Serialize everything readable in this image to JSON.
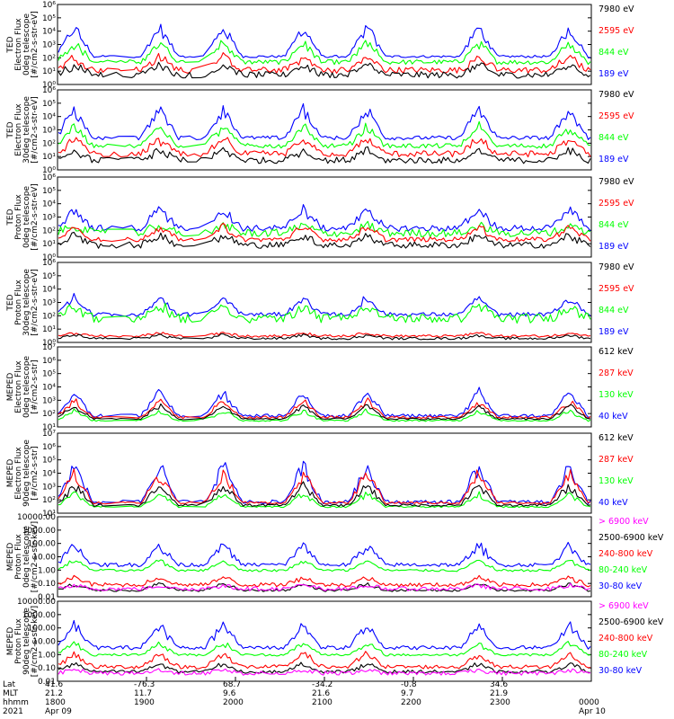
{
  "colors": {
    "blue": "#0000ff",
    "red": "#ff0000",
    "green": "#00ff00",
    "black": "#000000",
    "magenta": "#ff00ff",
    "axis": "#000000"
  },
  "chart_data": [
    {
      "type": "scatter",
      "ylabel": "TED\nElectron Flux\n0deg telescope\n[#/cm2-s-str-eV]",
      "ylim": [
        1,
        1000000
      ],
      "log_y": true,
      "yticks": [
        "10⁰",
        "10¹",
        "10²",
        "10³",
        "10⁴",
        "10⁵",
        "10⁶"
      ],
      "legend_placement": "right",
      "series": [
        {
          "name": "7980 eV",
          "color": "black"
        },
        {
          "name": "2595 eV",
          "color": "red"
        },
        {
          "name": "844 eV",
          "color": "green"
        },
        {
          "name": "189 eV",
          "color": "blue"
        }
      ]
    },
    {
      "type": "scatter",
      "ylabel": "TED\nElectron Flux\n30deg telescope\n[#/cm2-s-str-eV]",
      "ylim": [
        1,
        1000000
      ],
      "log_y": true,
      "yticks": [
        "10⁰",
        "10¹",
        "10²",
        "10³",
        "10⁴",
        "10⁵",
        "10⁶"
      ],
      "legend_placement": "right",
      "series": [
        {
          "name": "7980 eV",
          "color": "black"
        },
        {
          "name": "2595 eV",
          "color": "red"
        },
        {
          "name": "844 eV",
          "color": "green"
        },
        {
          "name": "189 eV",
          "color": "blue"
        }
      ]
    },
    {
      "type": "scatter",
      "ylabel": "TED\nProton Flux\n0deg telescope\n[#/cm2-s-str-eV]",
      "ylim": [
        1,
        1000000
      ],
      "log_y": true,
      "yticks": [
        "10⁰",
        "10¹",
        "10²",
        "10³",
        "10⁴",
        "10⁵",
        "10⁶"
      ],
      "legend_placement": "right",
      "series": [
        {
          "name": "7980 eV",
          "color": "black"
        },
        {
          "name": "2595 eV",
          "color": "red"
        },
        {
          "name": "844 eV",
          "color": "green"
        },
        {
          "name": "189 eV",
          "color": "blue"
        }
      ]
    },
    {
      "type": "scatter",
      "ylabel": "TED\nProton Flux\n30deg telescope\n[#/cm2-s-str-eV]",
      "ylim": [
        1,
        1000000
      ],
      "log_y": true,
      "yticks": [
        "10⁰",
        "10¹",
        "10²",
        "10³",
        "10⁴",
        "10⁵",
        "10⁶"
      ],
      "legend_placement": "right",
      "series": [
        {
          "name": "7980 eV",
          "color": "black"
        },
        {
          "name": "2595 eV",
          "color": "red"
        },
        {
          "name": "844 eV",
          "color": "green"
        },
        {
          "name": "189 eV",
          "color": "blue"
        }
      ]
    },
    {
      "type": "scatter",
      "ylabel": "MEPED\nElectron Flux\n0deg telescope\n[#/cm2-s-str]",
      "ylim": [
        10,
        10000000
      ],
      "log_y": true,
      "yticks": [
        "10¹",
        "10²",
        "10³",
        "10⁴",
        "10⁵",
        "10⁶",
        "10⁷"
      ],
      "legend_placement": "right",
      "series": [
        {
          "name": "612 keV",
          "color": "black"
        },
        {
          "name": "287 keV",
          "color": "red"
        },
        {
          "name": "130 keV",
          "color": "green"
        },
        {
          "name": "40 keV",
          "color": "blue"
        }
      ]
    },
    {
      "type": "scatter",
      "ylabel": "MEPED\nElectron Flux\n90deg telescope\n[#/cm2-s-str]",
      "ylim": [
        10,
        10000000
      ],
      "log_y": true,
      "yticks": [
        "10¹",
        "10²",
        "10³",
        "10⁴",
        "10⁵",
        "10⁶",
        "10⁷"
      ],
      "legend_placement": "right",
      "series": [
        {
          "name": "612 keV",
          "color": "black"
        },
        {
          "name": "287 keV",
          "color": "red"
        },
        {
          "name": "130 keV",
          "color": "green"
        },
        {
          "name": "40 keV",
          "color": "blue"
        }
      ]
    },
    {
      "type": "scatter",
      "ylabel": "MEPED\nProton Flux\n0deg telescope\n[#/cm2-s-str-keV]",
      "ylim": [
        0.01,
        10000
      ],
      "log_y": true,
      "yticks": [
        "0.01",
        "0.10",
        "1.00",
        "10.00",
        "100.00",
        "1000.00",
        "10000.00"
      ],
      "legend_placement": "right",
      "series": [
        {
          "name": "> 6900 keV",
          "color": "magenta"
        },
        {
          "name": "2500-6900 keV",
          "color": "black"
        },
        {
          "name": "240-800 keV",
          "color": "red"
        },
        {
          "name": "80-240 keV",
          "color": "green"
        },
        {
          "name": "30-80 keV",
          "color": "blue"
        }
      ]
    },
    {
      "type": "scatter",
      "ylabel": "MEPED\nProton Flux\n90deg telescope\n[#/cm2-s-str-keV]",
      "ylim": [
        0.01,
        10000
      ],
      "log_y": true,
      "yticks": [
        "0.01",
        "0.10",
        "1.00",
        "10.00",
        "100.00",
        "1000.00",
        "10000.00"
      ],
      "legend_placement": "right",
      "series": [
        {
          "name": "> 6900 keV",
          "color": "magenta"
        },
        {
          "name": "2500-6900 keV",
          "color": "black"
        },
        {
          "name": "240-800 keV",
          "color": "red"
        },
        {
          "name": "80-240 keV",
          "color": "green"
        },
        {
          "name": "30-80 keV",
          "color": "blue"
        }
      ]
    }
  ],
  "x_axis": {
    "row_labels": [
      "Lat",
      "MLT",
      "hhmm",
      "2021"
    ],
    "columns": [
      {
        "lat": "41.6",
        "mlt": "21.2",
        "hhmm": "1800",
        "date": "Apr 09"
      },
      {
        "lat": "-76.3",
        "mlt": "11.7",
        "hhmm": "1900",
        "date": ""
      },
      {
        "lat": "68.7",
        "mlt": "9.6",
        "hhmm": "2000",
        "date": ""
      },
      {
        "lat": "-34.2",
        "mlt": "21.6",
        "hhmm": "2100",
        "date": ""
      },
      {
        "lat": "-0.8",
        "mlt": "9.7",
        "hhmm": "2200",
        "date": ""
      },
      {
        "lat": "34.6",
        "mlt": "21.9",
        "hhmm": "2300",
        "date": ""
      },
      {
        "lat": "",
        "mlt": "",
        "hhmm": "0000",
        "date": "Apr 10"
      }
    ]
  }
}
